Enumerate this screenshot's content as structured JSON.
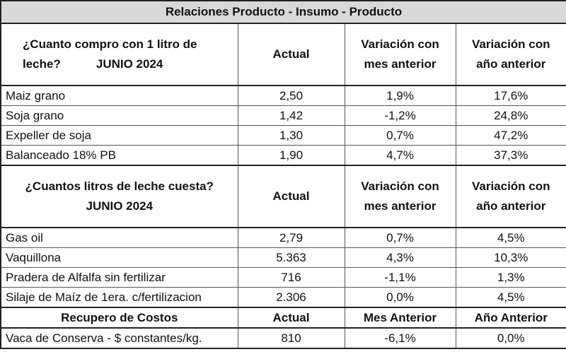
{
  "title": "Relaciones Producto - Insumo - Producto",
  "section1": {
    "question_line1": "¿Cuanto compro con 1 litro de",
    "question_line2": "leche?",
    "month": "JUNIO 2024",
    "col_actual": "Actual",
    "col_mes": "Variación con mes anterior",
    "col_anio": "Variación con año anterior",
    "rows": [
      {
        "label": "Maiz grano",
        "actual": "2,50",
        "mes": "1,9%",
        "anio": "17,6%"
      },
      {
        "label": "Soja grano",
        "actual": "1,42",
        "mes": "-1,2%",
        "anio": "24,8%"
      },
      {
        "label": "Expeller de soja",
        "actual": "1,30",
        "mes": "0,7%",
        "anio": "47,2%"
      },
      {
        "label": "Balanceado 18% PB",
        "actual": "1,90",
        "mes": "4,7%",
        "anio": "37,3%"
      }
    ]
  },
  "section2": {
    "question": "¿Cuantos litros de leche cuesta?",
    "month": "JUNIO 2024",
    "col_actual": "Actual",
    "col_mes": "Variación con mes anterior",
    "col_anio": "Variación con año anterior",
    "rows": [
      {
        "label": "Gas oil",
        "actual": "2,79",
        "mes": "0,7%",
        "anio": "4,5%"
      },
      {
        "label": "Vaquillona",
        "actual": "5.363",
        "mes": "4,3%",
        "anio": "10,3%"
      },
      {
        "label": "Pradera de Alfalfa sin fertilizar",
        "actual": "716",
        "mes": "-1,1%",
        "anio": "1,3%"
      },
      {
        "label": "Silaje de Maíz de 1era. c/fertilizacion",
        "actual": "2.306",
        "mes": "0,0%",
        "anio": "4,5%"
      }
    ]
  },
  "section3": {
    "label": "Recupero de Costos",
    "col_actual": "Actual",
    "col_mes": "Mes Anterior",
    "col_anio": "Año Anterior",
    "rows": [
      {
        "label": "Vaca de Conserva - $ constantes/kg.",
        "actual": "810",
        "mes": "-6,1%",
        "anio": "0,0%"
      }
    ]
  }
}
